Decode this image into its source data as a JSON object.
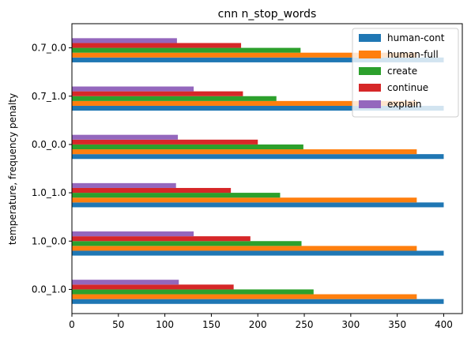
{
  "chart_data": {
    "type": "bar",
    "orientation": "horizontal",
    "title": "cnn n_stop_words",
    "xlabel": "",
    "ylabel": "temperature, frequency penalty",
    "xlim": [
      0,
      420
    ],
    "xticks": [
      0,
      50,
      100,
      150,
      200,
      250,
      300,
      350,
      400
    ],
    "categories": [
      "0.0_1.0",
      "1.0_0.0",
      "1.0_1.0",
      "0.0_0.0",
      "0.7_1.0",
      "0.7_0.0"
    ],
    "series": [
      {
        "name": "human-cont",
        "color": "#1f77b4",
        "values": [
          400,
          400,
          400,
          400,
          400,
          400
        ]
      },
      {
        "name": "human-full",
        "color": "#ff7f0e",
        "values": [
          371,
          371,
          371,
          371,
          371,
          371
        ]
      },
      {
        "name": "create",
        "color": "#2ca02c",
        "values": [
          260,
          247,
          224,
          249,
          220,
          246
        ]
      },
      {
        "name": "continue",
        "color": "#d62728",
        "values": [
          174,
          192,
          171,
          200,
          184,
          182
        ]
      },
      {
        "name": "explain",
        "color": "#9467bd",
        "values": [
          115,
          131,
          112,
          114,
          131,
          113
        ]
      }
    ],
    "grid": false,
    "legend_position": "top-right"
  }
}
